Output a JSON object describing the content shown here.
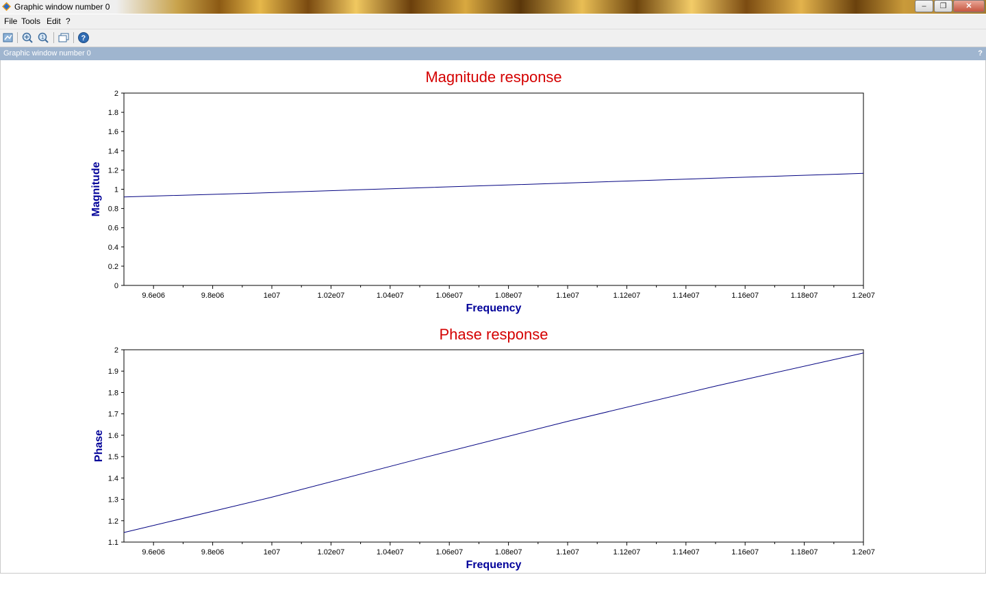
{
  "window": {
    "title": "Graphic window number 0",
    "minimize_icon": "minimize-icon",
    "maximize_icon": "restore-icon",
    "close_icon": "close-icon"
  },
  "menu": [
    "File",
    "Tools",
    "Edit",
    "?"
  ],
  "toolbar": {
    "icons": [
      "datatip-icon",
      "zoom-in-icon",
      "zoom-reset-icon",
      "new-window-icon",
      "help-icon"
    ]
  },
  "panel": {
    "title": "Graphic window number 0",
    "help_label": "?"
  },
  "chart_data": [
    {
      "type": "line",
      "title": "Magnitude response",
      "xlabel": "Frequency",
      "ylabel": "Magnitude",
      "xlim": [
        9500000.0,
        12000000.0
      ],
      "ylim": [
        0,
        2
      ],
      "xticks": [
        9600000.0,
        9800000.0,
        10000000.0,
        10200000.0,
        10400000.0,
        10600000.0,
        10800000.0,
        11000000.0,
        11200000.0,
        11400000.0,
        11600000.0,
        11800000.0,
        12000000.0
      ],
      "xtick_labels": [
        "9.6e06",
        "9.8e06",
        "1e07",
        "1.02e07",
        "1.04e07",
        "1.06e07",
        "1.08e07",
        "1.1e07",
        "1.12e07",
        "1.14e07",
        "1.16e07",
        "1.18e07",
        "1.2e07"
      ],
      "yticks": [
        0,
        0.2,
        0.4,
        0.6,
        0.8,
        1,
        1.2,
        1.4,
        1.6,
        1.8,
        2
      ],
      "ytick_labels": [
        "0",
        "0.2",
        "0.4",
        "0.6",
        "0.8",
        "1",
        "1.2",
        "1.4",
        "1.6",
        "1.8",
        "2"
      ],
      "grid": false,
      "line_color": "#000080",
      "series": [
        {
          "x": [
            9500000.0,
            10000000.0,
            10500000.0,
            11000000.0,
            11500000.0,
            12000000.0
          ],
          "y": [
            0.92,
            0.965,
            1.015,
            1.065,
            1.115,
            1.165
          ]
        }
      ]
    },
    {
      "type": "line",
      "title": "Phase response",
      "xlabel": "Frequency",
      "ylabel": "Phase",
      "xlim": [
        9500000.0,
        12000000.0
      ],
      "ylim": [
        1.1,
        2
      ],
      "xticks": [
        9600000.0,
        9800000.0,
        10000000.0,
        10200000.0,
        10400000.0,
        10600000.0,
        10800000.0,
        11000000.0,
        11200000.0,
        11400000.0,
        11600000.0,
        11800000.0,
        12000000.0
      ],
      "xtick_labels": [
        "9.6e06",
        "9.8e06",
        "1e07",
        "1.02e07",
        "1.04e07",
        "1.06e07",
        "1.08e07",
        "1.1e07",
        "1.12e07",
        "1.14e07",
        "1.16e07",
        "1.18e07",
        "1.2e07"
      ],
      "yticks": [
        1.1,
        1.2,
        1.3,
        1.4,
        1.5,
        1.6,
        1.7,
        1.8,
        1.9,
        2
      ],
      "ytick_labels": [
        "1.1",
        "1.2",
        "1.3",
        "1.4",
        "1.5",
        "1.6",
        "1.7",
        "1.8",
        "1.9",
        "2"
      ],
      "grid": false,
      "line_color": "#000080",
      "series": [
        {
          "x": [
            9500000.0,
            10000000.0,
            10500000.0,
            11000000.0,
            11500000.0,
            12000000.0
          ],
          "y": [
            1.145,
            1.31,
            1.49,
            1.665,
            1.83,
            1.985
          ]
        }
      ]
    }
  ]
}
